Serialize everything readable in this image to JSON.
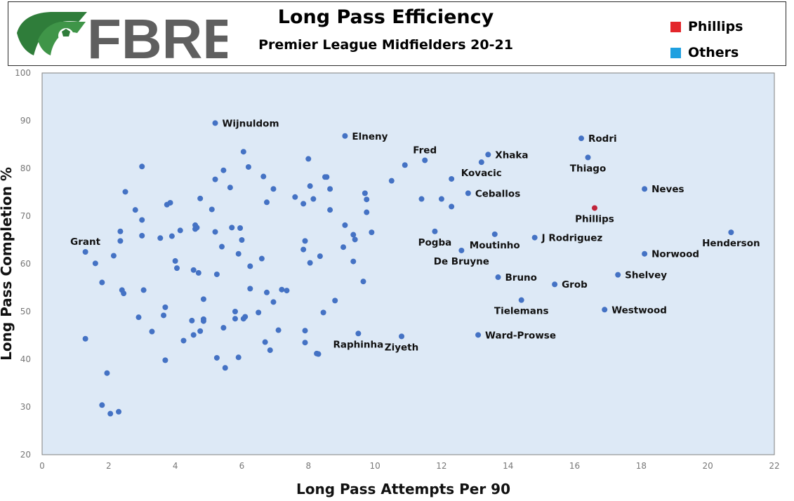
{
  "header": {
    "logo_text": "FBREF",
    "title": "Long Pass Efficiency",
    "subtitle": "Premier League Midfielders 20-21"
  },
  "legend": [
    {
      "label": "Phillips",
      "color": "#e3262b"
    },
    {
      "label": "Others",
      "color": "#1fa0e0"
    }
  ],
  "colors": {
    "plot_background": "#dde9f6",
    "point": "#4472c4",
    "highlight": "#c0243a"
  },
  "chart_data": {
    "type": "scatter",
    "title": "Long Pass Efficiency",
    "subtitle": "Premier League Midfielders 20-21",
    "xlabel": "Long Pass Attempts Per 90",
    "ylabel": "Long Pass Completion %",
    "xlim": [
      0,
      22
    ],
    "ylim": [
      20,
      100
    ],
    "xticks": [
      0,
      2,
      4,
      6,
      8,
      10,
      12,
      14,
      16,
      18,
      20,
      22
    ],
    "yticks": [
      20,
      30,
      40,
      50,
      60,
      70,
      80,
      90,
      100
    ],
    "grid": false,
    "legend_position": "top-right",
    "labeled_points": [
      {
        "name": "Wijnuldom",
        "x": 5.2,
        "y": 89.5,
        "label_side": "right"
      },
      {
        "name": "Elneny",
        "x": 9.1,
        "y": 86.8,
        "label_side": "right"
      },
      {
        "name": "Fred",
        "x": 11.5,
        "y": 81.7,
        "label_side": "above"
      },
      {
        "name": "Xhaka",
        "x": 13.4,
        "y": 82.9,
        "label_side": "right"
      },
      {
        "name": "Kovacic",
        "x": 13.2,
        "y": 81.3,
        "label_side": "below"
      },
      {
        "name": "Rodri",
        "x": 16.2,
        "y": 86.3,
        "label_side": "right"
      },
      {
        "name": "Thiago",
        "x": 16.4,
        "y": 82.3,
        "label_side": "below"
      },
      {
        "name": "Ceballos",
        "x": 12.8,
        "y": 74.8,
        "label_side": "right"
      },
      {
        "name": "Neves",
        "x": 18.1,
        "y": 75.7,
        "label_side": "right"
      },
      {
        "name": "Phillips",
        "x": 16.6,
        "y": 71.7,
        "label_side": "below",
        "highlight": true
      },
      {
        "name": "Grant",
        "x": 1.3,
        "y": 62.5,
        "label_side": "above"
      },
      {
        "name": "Pogba",
        "x": 11.8,
        "y": 66.8,
        "label_side": "below"
      },
      {
        "name": "Moutinho",
        "x": 13.6,
        "y": 66.2,
        "label_side": "below"
      },
      {
        "name": "J Rodriguez",
        "x": 14.8,
        "y": 65.5,
        "label_side": "right"
      },
      {
        "name": "De Bruyne",
        "x": 12.6,
        "y": 62.8,
        "label_side": "below"
      },
      {
        "name": "Henderson",
        "x": 20.7,
        "y": 66.6,
        "label_side": "below"
      },
      {
        "name": "Norwood",
        "x": 18.1,
        "y": 62.1,
        "label_side": "right"
      },
      {
        "name": "Bruno",
        "x": 13.7,
        "y": 57.2,
        "label_side": "right"
      },
      {
        "name": "Shelvey",
        "x": 17.3,
        "y": 57.7,
        "label_side": "right"
      },
      {
        "name": "Grob",
        "x": 15.4,
        "y": 55.7,
        "label_side": "right"
      },
      {
        "name": "Tielemans",
        "x": 14.4,
        "y": 52.4,
        "label_side": "below"
      },
      {
        "name": "Westwood",
        "x": 16.9,
        "y": 50.4,
        "label_side": "right"
      },
      {
        "name": "Ward-Prowse",
        "x": 13.1,
        "y": 45.1,
        "label_side": "right"
      },
      {
        "name": "Raphinha",
        "x": 9.5,
        "y": 45.4,
        "label_side": "below"
      },
      {
        "name": "Ziyeth",
        "x": 10.8,
        "y": 44.8,
        "label_side": "below"
      }
    ],
    "points": [
      [
        1.3,
        44.3
      ],
      [
        1.6,
        60.1
      ],
      [
        1.8,
        56.1
      ],
      [
        1.8,
        30.4
      ],
      [
        1.95,
        37.1
      ],
      [
        2.05,
        28.6
      ],
      [
        2.15,
        61.7
      ],
      [
        2.3,
        29.0
      ],
      [
        2.35,
        66.8
      ],
      [
        2.35,
        64.8
      ],
      [
        2.4,
        54.5
      ],
      [
        2.45,
        53.8
      ],
      [
        2.5,
        75.1
      ],
      [
        2.8,
        71.3
      ],
      [
        2.9,
        48.8
      ],
      [
        3.0,
        80.4
      ],
      [
        3.0,
        69.2
      ],
      [
        3.0,
        65.9
      ],
      [
        3.05,
        54.5
      ],
      [
        3.3,
        45.8
      ],
      [
        3.55,
        65.4
      ],
      [
        3.65,
        49.2
      ],
      [
        3.7,
        50.9
      ],
      [
        3.7,
        39.8
      ],
      [
        3.75,
        72.4
      ],
      [
        3.85,
        72.8
      ],
      [
        3.9,
        65.8
      ],
      [
        4.0,
        60.6
      ],
      [
        4.05,
        59.1
      ],
      [
        4.15,
        67.0
      ],
      [
        4.25,
        43.9
      ],
      [
        4.5,
        48.1
      ],
      [
        4.55,
        45.1
      ],
      [
        4.55,
        58.7
      ],
      [
        4.6,
        68.1
      ],
      [
        4.6,
        67.3
      ],
      [
        4.65,
        67.6
      ],
      [
        4.7,
        58.1
      ],
      [
        4.75,
        73.7
      ],
      [
        4.75,
        45.9
      ],
      [
        4.85,
        48.4
      ],
      [
        4.85,
        48.0
      ],
      [
        4.85,
        52.6
      ],
      [
        5.1,
        71.4
      ],
      [
        5.2,
        66.7
      ],
      [
        5.2,
        77.7
      ],
      [
        5.25,
        57.8
      ],
      [
        5.25,
        40.3
      ],
      [
        5.4,
        63.6
      ],
      [
        5.45,
        79.6
      ],
      [
        5.45,
        46.6
      ],
      [
        5.5,
        38.2
      ],
      [
        5.65,
        76.0
      ],
      [
        5.7,
        67.6
      ],
      [
        5.8,
        50.0
      ],
      [
        5.8,
        48.5
      ],
      [
        5.9,
        40.4
      ],
      [
        5.9,
        62.1
      ],
      [
        5.95,
        67.5
      ],
      [
        6.0,
        65.0
      ],
      [
        6.05,
        48.5
      ],
      [
        6.05,
        83.5
      ],
      [
        6.1,
        48.9
      ],
      [
        6.2,
        80.3
      ],
      [
        6.25,
        54.8
      ],
      [
        6.25,
        59.5
      ],
      [
        6.5,
        49.8
      ],
      [
        6.6,
        61.1
      ],
      [
        6.65,
        78.3
      ],
      [
        6.7,
        43.6
      ],
      [
        6.75,
        54.0
      ],
      [
        6.75,
        72.9
      ],
      [
        6.85,
        41.9
      ],
      [
        6.95,
        75.7
      ],
      [
        6.95,
        52.0
      ],
      [
        7.1,
        46.1
      ],
      [
        7.2,
        54.6
      ],
      [
        7.35,
        54.4
      ],
      [
        7.6,
        74.0
      ],
      [
        7.85,
        72.6
      ],
      [
        7.85,
        63.0
      ],
      [
        7.9,
        64.8
      ],
      [
        7.9,
        46.0
      ],
      [
        7.9,
        43.5
      ],
      [
        8.0,
        82.0
      ],
      [
        8.05,
        76.3
      ],
      [
        8.05,
        60.2
      ],
      [
        8.15,
        73.6
      ],
      [
        8.25,
        41.2
      ],
      [
        8.3,
        41.1
      ],
      [
        8.35,
        61.6
      ],
      [
        8.45,
        49.8
      ],
      [
        8.5,
        78.2
      ],
      [
        8.55,
        78.2
      ],
      [
        8.65,
        75.7
      ],
      [
        8.65,
        71.3
      ],
      [
        8.8,
        52.3
      ],
      [
        9.05,
        63.5
      ],
      [
        9.1,
        68.1
      ],
      [
        9.35,
        60.5
      ],
      [
        9.35,
        66.1
      ],
      [
        9.4,
        65.1
      ],
      [
        9.65,
        56.3
      ],
      [
        9.7,
        74.8
      ],
      [
        9.75,
        73.5
      ],
      [
        9.75,
        70.8
      ],
      [
        9.9,
        66.6
      ],
      [
        10.5,
        77.4
      ],
      [
        10.9,
        80.7
      ],
      [
        11.4,
        73.6
      ],
      [
        12.0,
        73.6
      ],
      [
        12.3,
        77.8
      ],
      [
        12.3,
        72.0
      ]
    ]
  }
}
